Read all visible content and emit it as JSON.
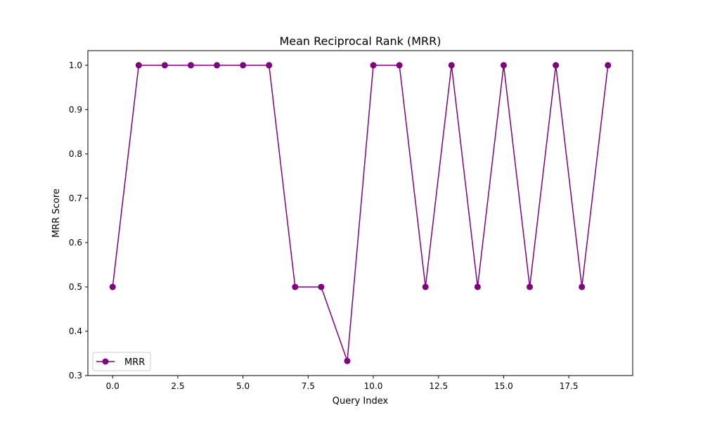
{
  "chart_data": {
    "type": "line",
    "title": "Mean Reciprocal Rank (MRR)",
    "xlabel": "Query Index",
    "ylabel": "MRR Score",
    "xlim": [
      -0.95,
      19.95
    ],
    "ylim": [
      0.3,
      1.033
    ],
    "x_ticks": [
      0.0,
      2.5,
      5.0,
      7.5,
      10.0,
      12.5,
      15.0,
      17.5
    ],
    "x_tick_labels": [
      "0.0",
      "2.5",
      "5.0",
      "7.5",
      "10.0",
      "12.5",
      "15.0",
      "17.5"
    ],
    "y_ticks": [
      0.3,
      0.4,
      0.5,
      0.6,
      0.7,
      0.8,
      0.9,
      1.0
    ],
    "y_tick_labels": [
      "0.3",
      "0.4",
      "0.5",
      "0.6",
      "0.7",
      "0.8",
      "0.9",
      "1.0"
    ],
    "grid": false,
    "legend_position": "lower-left",
    "series": [
      {
        "name": "MRR",
        "color": "#800080",
        "marker": "circle",
        "x": [
          0,
          1,
          2,
          3,
          4,
          5,
          6,
          7,
          8,
          9,
          10,
          11,
          12,
          13,
          14,
          15,
          16,
          17,
          18,
          19
        ],
        "values": [
          0.5,
          1.0,
          1.0,
          1.0,
          1.0,
          1.0,
          1.0,
          0.5,
          0.5,
          0.333,
          1.0,
          1.0,
          0.5,
          1.0,
          0.5,
          1.0,
          0.5,
          1.0,
          0.5,
          1.0
        ]
      }
    ]
  }
}
